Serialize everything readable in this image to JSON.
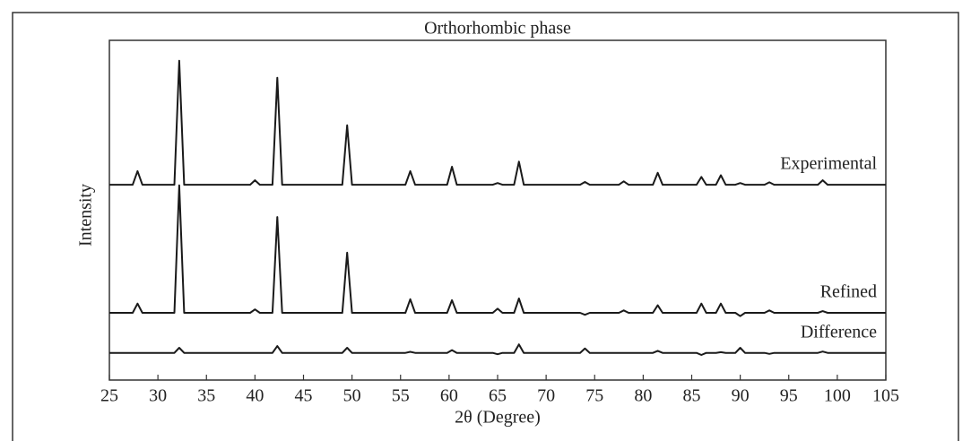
{
  "chart_data": {
    "type": "line",
    "title": "Orthorhombic phase",
    "x_label": "2θ (Degree)",
    "y_label": "Intensity",
    "x": [
      25,
      27.4,
      27.9,
      28.4,
      31.7,
      32.2,
      32.7,
      39.5,
      40.0,
      40.5,
      41.8,
      42.3,
      42.8,
      49.0,
      49.5,
      50.0,
      55.5,
      56.0,
      56.5,
      59.8,
      60.3,
      60.8,
      64.5,
      65.0,
      65.5,
      66.7,
      67.2,
      67.7,
      73.5,
      74.0,
      74.5,
      77.5,
      78.0,
      78.5,
      81.0,
      81.5,
      82.0,
      85.5,
      86.0,
      86.5,
      87.5,
      88.0,
      88.5,
      89.5,
      90.0,
      90.5,
      92.5,
      93.0,
      93.5,
      98.0,
      98.5,
      99.0,
      105
    ],
    "series": [
      {
        "name": "Experimental",
        "color": "#1a1a1a",
        "values": [
          57.5,
          57.5,
          61.5,
          57.5,
          57.5,
          94,
          57.5,
          57.5,
          58.8,
          57.5,
          57.5,
          89,
          57.5,
          57.5,
          75,
          57.5,
          57.5,
          61.5,
          57.5,
          57.5,
          62.8,
          57.5,
          57.5,
          58,
          57.5,
          57.5,
          64.3,
          57.5,
          57.5,
          58.3,
          57.5,
          57.5,
          58.5,
          57.5,
          57.5,
          61,
          57.5,
          57.5,
          59.8,
          57.5,
          57.5,
          60.3,
          57.5,
          57.5,
          58,
          57.5,
          57.5,
          58.2,
          57.5,
          57.5,
          58.8,
          57.5,
          57.5
        ]
      },
      {
        "name": "Refined",
        "color": "#1a1a1a",
        "values": [
          19.8,
          19.8,
          22.5,
          19.8,
          19.8,
          57.3,
          19.8,
          19.8,
          20.8,
          19.8,
          19.8,
          48,
          19.8,
          19.8,
          37.5,
          19.8,
          19.8,
          23.8,
          19.8,
          19.8,
          23.5,
          19.8,
          19.8,
          21,
          19.8,
          19.8,
          24,
          19.8,
          19.8,
          19.2,
          19.8,
          19.8,
          20.5,
          19.8,
          19.8,
          22,
          19.8,
          19.8,
          22.5,
          19.8,
          19.8,
          22.5,
          19.8,
          19.8,
          18.8,
          19.8,
          19.8,
          20.5,
          19.8,
          19.8,
          20.3,
          19.8,
          19.8
        ]
      },
      {
        "name": "Difference",
        "color": "#1a1a1a",
        "values": [
          8,
          8,
          8,
          8,
          8,
          9.5,
          8,
          8,
          8,
          8,
          8,
          10,
          8,
          8,
          9.5,
          8,
          8,
          8.3,
          8,
          8,
          8.8,
          8,
          8,
          7.6,
          8,
          8,
          10.5,
          8,
          8,
          9.3,
          8,
          8,
          8,
          8,
          8,
          8.6,
          8,
          8,
          7.4,
          8,
          8,
          8.2,
          8,
          8,
          9.5,
          8,
          8,
          7.7,
          8,
          8,
          8.4,
          8,
          8
        ]
      }
    ],
    "xlim": [
      25,
      105
    ],
    "xticks": [
      25,
      30,
      35,
      40,
      45,
      50,
      55,
      60,
      65,
      70,
      75,
      80,
      85,
      90,
      95,
      100,
      105
    ],
    "ylim": [
      0,
      100
    ]
  }
}
